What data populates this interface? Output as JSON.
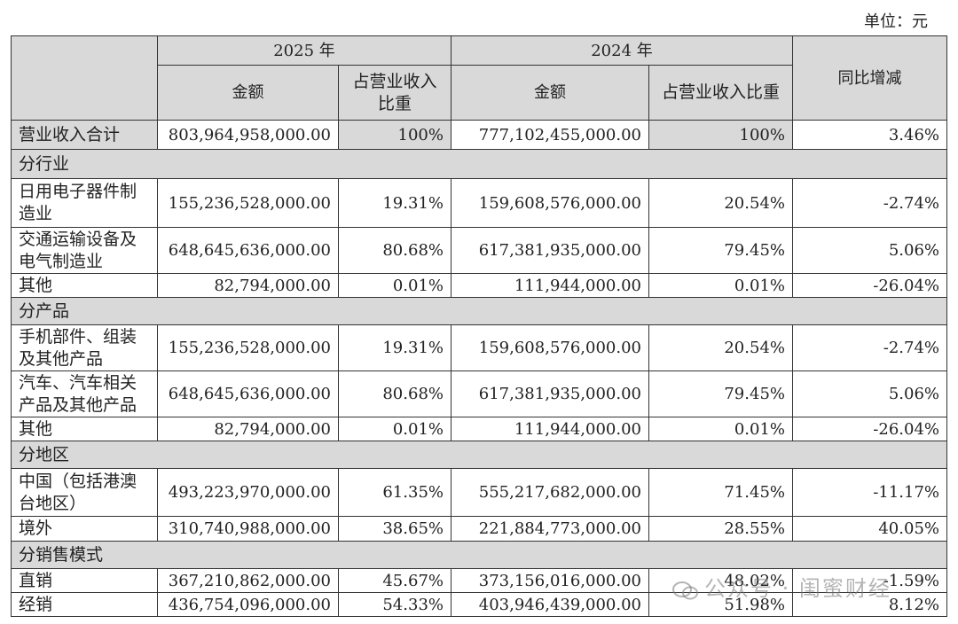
{
  "unit_label": "单位：元",
  "header": {
    "year_2025": "2025 年",
    "year_2024": "2024 年",
    "change": "同比增减",
    "amount_2025": "金额",
    "ratio_2025": "占营业收入比重",
    "amount_2024": "金额",
    "ratio_2024": "占营业收入比重"
  },
  "table": {
    "rows": [
      [
        "营业收入合计",
        "803,964,958,000.00",
        "100%",
        "777,102,455,000.00",
        "100%",
        "3.46%"
      ],
      [
        "分行业"
      ],
      [
        "日用电子器件制造业",
        "155,236,528,000.00",
        "19.31%",
        "159,608,576,000.00",
        "20.54%",
        "-2.74%"
      ],
      [
        "交通运输设备及电气制造业",
        "648,645,636,000.00",
        "80.68%",
        "617,381,935,000.00",
        "79.45%",
        "5.06%"
      ],
      [
        "其他",
        "82,794,000.00",
        "0.01%",
        "111,944,000.00",
        "0.01%",
        "-26.04%"
      ],
      [
        "分产品"
      ],
      [
        "手机部件、组装及其他产品",
        "155,236,528,000.00",
        "19.31%",
        "159,608,576,000.00",
        "20.54%",
        "-2.74%"
      ],
      [
        "汽车、汽车相关产品及其他产品",
        "648,645,636,000.00",
        "80.68%",
        "617,381,935,000.00",
        "79.45%",
        "5.06%"
      ],
      [
        "其他",
        "82,794,000.00",
        "0.01%",
        "111,944,000.00",
        "0.01%",
        "-26.04%"
      ],
      [
        "分地区"
      ],
      [
        "中国（包括港澳台地区）",
        "493,223,970,000.00",
        "61.35%",
        "555,217,682,000.00",
        "71.45%",
        "-11.17%"
      ],
      [
        "境外",
        "310,740,988,000.00",
        "38.65%",
        "221,884,773,000.00",
        "28.55%",
        "40.05%"
      ],
      [
        "分销售模式"
      ],
      [
        "直销",
        "367,210,862,000.00",
        "45.67%",
        "373,156,016,000.00",
        "48.02%",
        "-1.59%"
      ],
      [
        "经销",
        "436,754,096,000.00",
        "54.33%",
        "403,946,439,000.00",
        "51.98%",
        "8.12%"
      ]
    ]
  },
  "watermark": "公众号 · 闺蜜财经"
}
